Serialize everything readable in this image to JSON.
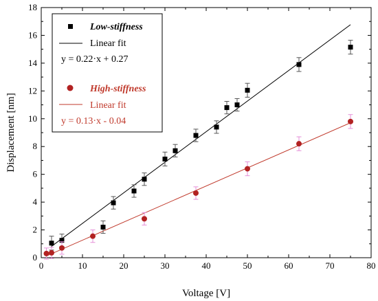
{
  "chart_data": {
    "type": "scatter",
    "xlabel": "Voltage [V]",
    "ylabel": "Displacement [nm]",
    "xlim": [
      0,
      80
    ],
    "ylim": [
      0,
      18
    ],
    "x_ticks": [
      "0",
      "10",
      "20",
      "30",
      "40",
      "50",
      "60",
      "70",
      "80"
    ],
    "y_ticks": [
      "0",
      "2",
      "4",
      "6",
      "8",
      "10",
      "12",
      "14",
      "16",
      "18"
    ],
    "grid": false,
    "legend_position": "top-left",
    "series": [
      {
        "name": "Low-stiffness",
        "marker": "square",
        "color": "#000000",
        "errorbar_color": "#555555",
        "points": [
          {
            "x": 2.5,
            "y": 1.05,
            "err": 0.5
          },
          {
            "x": 5,
            "y": 1.25,
            "err": 0.45
          },
          {
            "x": 15,
            "y": 2.2,
            "err": 0.45
          },
          {
            "x": 17.5,
            "y": 3.95,
            "err": 0.45
          },
          {
            "x": 22.5,
            "y": 4.8,
            "err": 0.45
          },
          {
            "x": 25,
            "y": 5.65,
            "err": 0.45
          },
          {
            "x": 30,
            "y": 7.1,
            "err": 0.5
          },
          {
            "x": 32.5,
            "y": 7.7,
            "err": 0.45
          },
          {
            "x": 37.5,
            "y": 8.8,
            "err": 0.45
          },
          {
            "x": 42.5,
            "y": 9.4,
            "err": 0.45
          },
          {
            "x": 45,
            "y": 10.8,
            "err": 0.45
          },
          {
            "x": 47.5,
            "y": 11.0,
            "err": 0.45
          },
          {
            "x": 50,
            "y": 12.05,
            "err": 0.5
          },
          {
            "x": 62.5,
            "y": 13.9,
            "err": 0.5
          },
          {
            "x": 75,
            "y": 15.15,
            "err": 0.5
          }
        ],
        "fit": {
          "label": "Linear fit",
          "equation": "y = 0.22·x + 0.27",
          "slope": 0.22,
          "intercept": 0.27,
          "x_range": [
            2.5,
            75
          ],
          "color": "#000000"
        }
      },
      {
        "name": "High-stiffness",
        "marker": "circle",
        "color": "#b22222",
        "errorbar_color": "#e58fd8",
        "points": [
          {
            "x": 1.25,
            "y": 0.3,
            "err": 0.4
          },
          {
            "x": 2.5,
            "y": 0.35,
            "err": 0.4
          },
          {
            "x": 5,
            "y": 0.7,
            "err": 0.45
          },
          {
            "x": 12.5,
            "y": 1.55,
            "err": 0.45
          },
          {
            "x": 25,
            "y": 2.8,
            "err": 0.45
          },
          {
            "x": 37.5,
            "y": 4.65,
            "err": 0.45
          },
          {
            "x": 50,
            "y": 6.4,
            "err": 0.5
          },
          {
            "x": 62.5,
            "y": 8.2,
            "err": 0.5
          },
          {
            "x": 75,
            "y": 9.8,
            "err": 0.5
          }
        ],
        "fit": {
          "label": "Linear fit",
          "equation": "y = 0.13·x - 0.04",
          "slope": 0.13,
          "intercept": -0.04,
          "x_range": [
            1.25,
            75
          ],
          "color": "#c0392b"
        }
      }
    ]
  }
}
